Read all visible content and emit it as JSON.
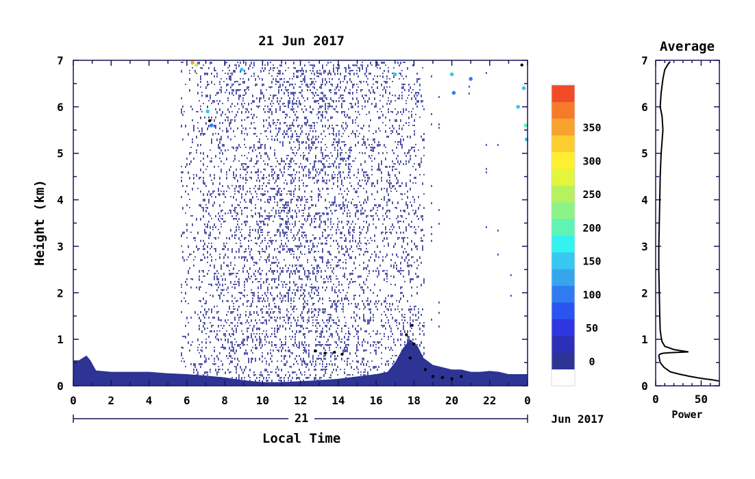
{
  "chart_data": [
    {
      "type": "heatmap",
      "title": "21 Jun 2017",
      "xlabel": "Local Time",
      "ylabel": "Height (km)",
      "xlim": [
        0,
        24
      ],
      "ylim": [
        0,
        7
      ],
      "x_ticks": [
        "0",
        "2",
        "4",
        "6",
        "8",
        "10",
        "12",
        "14",
        "16",
        "18",
        "20",
        "22",
        "0"
      ],
      "y_ticks": [
        "0",
        "1",
        "2",
        "3",
        "4",
        "5",
        "6",
        "7"
      ],
      "day_label": "21",
      "date_label": "Jun 2017",
      "surface_layer": {
        "hours": [
          0,
          0.3,
          0.5,
          0.7,
          0.9,
          1.2,
          2,
          3,
          4,
          5,
          6,
          7,
          8,
          9,
          10,
          11,
          12,
          13,
          14,
          15,
          16,
          16.6,
          17,
          17.4,
          17.8,
          18.2,
          18.5,
          19,
          19.5,
          20,
          20.5,
          21,
          21.5,
          22,
          22.5,
          23,
          23.5,
          24
        ],
        "top_km": [
          0.55,
          0.55,
          0.6,
          0.65,
          0.55,
          0.33,
          0.3,
          0.3,
          0.3,
          0.27,
          0.25,
          0.22,
          0.18,
          0.12,
          0.08,
          0.08,
          0.1,
          0.12,
          0.15,
          0.2,
          0.25,
          0.3,
          0.5,
          0.8,
          1.0,
          0.85,
          0.6,
          0.45,
          0.4,
          0.35,
          0.35,
          0.3,
          0.3,
          0.32,
          0.3,
          0.25,
          0.25,
          0.25
        ]
      },
      "scatter_range_hours": [
        5.7,
        18.5
      ],
      "enhanced_echoes": [
        {
          "hour": 12.8,
          "height": 0.75,
          "value": 0
        },
        {
          "hour": 13.3,
          "height": 0.7,
          "value": 0
        },
        {
          "hour": 13.8,
          "height": 0.72,
          "value": 0
        },
        {
          "hour": 14.2,
          "height": 0.68,
          "value": 0
        },
        {
          "hour": 17.6,
          "height": 1.1,
          "value": 0
        },
        {
          "hour": 17.9,
          "height": 1.3,
          "value": 0
        },
        {
          "hour": 18.0,
          "height": 0.9,
          "value": 0
        },
        {
          "hour": 17.8,
          "height": 0.6,
          "value": 0
        },
        {
          "hour": 18.6,
          "height": 0.35,
          "value": 0
        },
        {
          "hour": 19.0,
          "height": 0.2,
          "value": 0
        },
        {
          "hour": 19.5,
          "height": 0.18,
          "value": 0
        },
        {
          "hour": 20.0,
          "height": 0.15,
          "value": 0
        },
        {
          "hour": 20.5,
          "height": 0.2,
          "value": 0
        },
        {
          "hour": 6.3,
          "height": 6.95,
          "value": 350
        },
        {
          "hour": 6.5,
          "height": 6.9,
          "value": 250
        },
        {
          "hour": 7.1,
          "height": 5.9,
          "value": 150
        },
        {
          "hour": 7.2,
          "height": 5.7,
          "value": 0
        },
        {
          "hour": 7.3,
          "height": 5.6,
          "value": 100
        },
        {
          "hour": 8.9,
          "height": 6.8,
          "value": 150
        },
        {
          "hour": 17.0,
          "height": 6.7,
          "value": 150
        },
        {
          "hour": 20.0,
          "height": 6.7,
          "value": 150
        },
        {
          "hour": 20.1,
          "height": 6.3,
          "value": 100
        },
        {
          "hour": 21.0,
          "height": 6.6,
          "value": 100
        },
        {
          "hour": 23.5,
          "height": 6.0,
          "value": 150
        },
        {
          "hour": 23.8,
          "height": 6.4,
          "value": 150
        },
        {
          "hour": 23.9,
          "height": 5.6,
          "value": 200
        },
        {
          "hour": 23.95,
          "height": 5.3,
          "value": 150
        },
        {
          "hour": 23.7,
          "height": 6.9,
          "value": 0
        }
      ]
    },
    {
      "type": "line",
      "title": "Average",
      "xlabel": "Power",
      "xlim": [
        0,
        70
      ],
      "ylim": [
        0,
        7
      ],
      "x_ticks": [
        "0",
        "50"
      ],
      "y_ticks": [
        "0",
        "1",
        "2",
        "3",
        "4",
        "5",
        "6",
        "7"
      ],
      "x": [
        70,
        62,
        50,
        38,
        26,
        16,
        9,
        5,
        4,
        3.5,
        4.5,
        8,
        15,
        25,
        36,
        20,
        10,
        7,
        6,
        5,
        4.5,
        4,
        3.5,
        3.5,
        4,
        4.5,
        5,
        6,
        8,
        7,
        5,
        6,
        8,
        10,
        14,
        16
      ],
      "y": [
        0.1,
        0.13,
        0.16,
        0.2,
        0.25,
        0.3,
        0.4,
        0.5,
        0.6,
        0.65,
        0.68,
        0.7,
        0.71,
        0.72,
        0.73,
        0.78,
        0.85,
        0.95,
        1.05,
        1.2,
        1.5,
        2.0,
        2.5,
        3.0,
        3.5,
        4.0,
        4.5,
        5.0,
        5.5,
        5.8,
        6.0,
        6.3,
        6.6,
        6.8,
        6.93,
        6.97
      ]
    }
  ],
  "colorbar": {
    "ticks": [
      "0",
      "50",
      "100",
      "150",
      "200",
      "250",
      "300",
      "350"
    ],
    "colors": [
      "#2d3494",
      "#2c30b8",
      "#2d36e0",
      "#2b53ef",
      "#2f7cf1",
      "#35a5ee",
      "#36c8f0",
      "#33f2f0",
      "#5ff3b4",
      "#8cf388",
      "#b6f25c",
      "#e2f63b",
      "#fef030",
      "#fccd2e",
      "#f9a22d",
      "#f67a2c",
      "#f04a28"
    ],
    "below_color": "#ffffff"
  }
}
